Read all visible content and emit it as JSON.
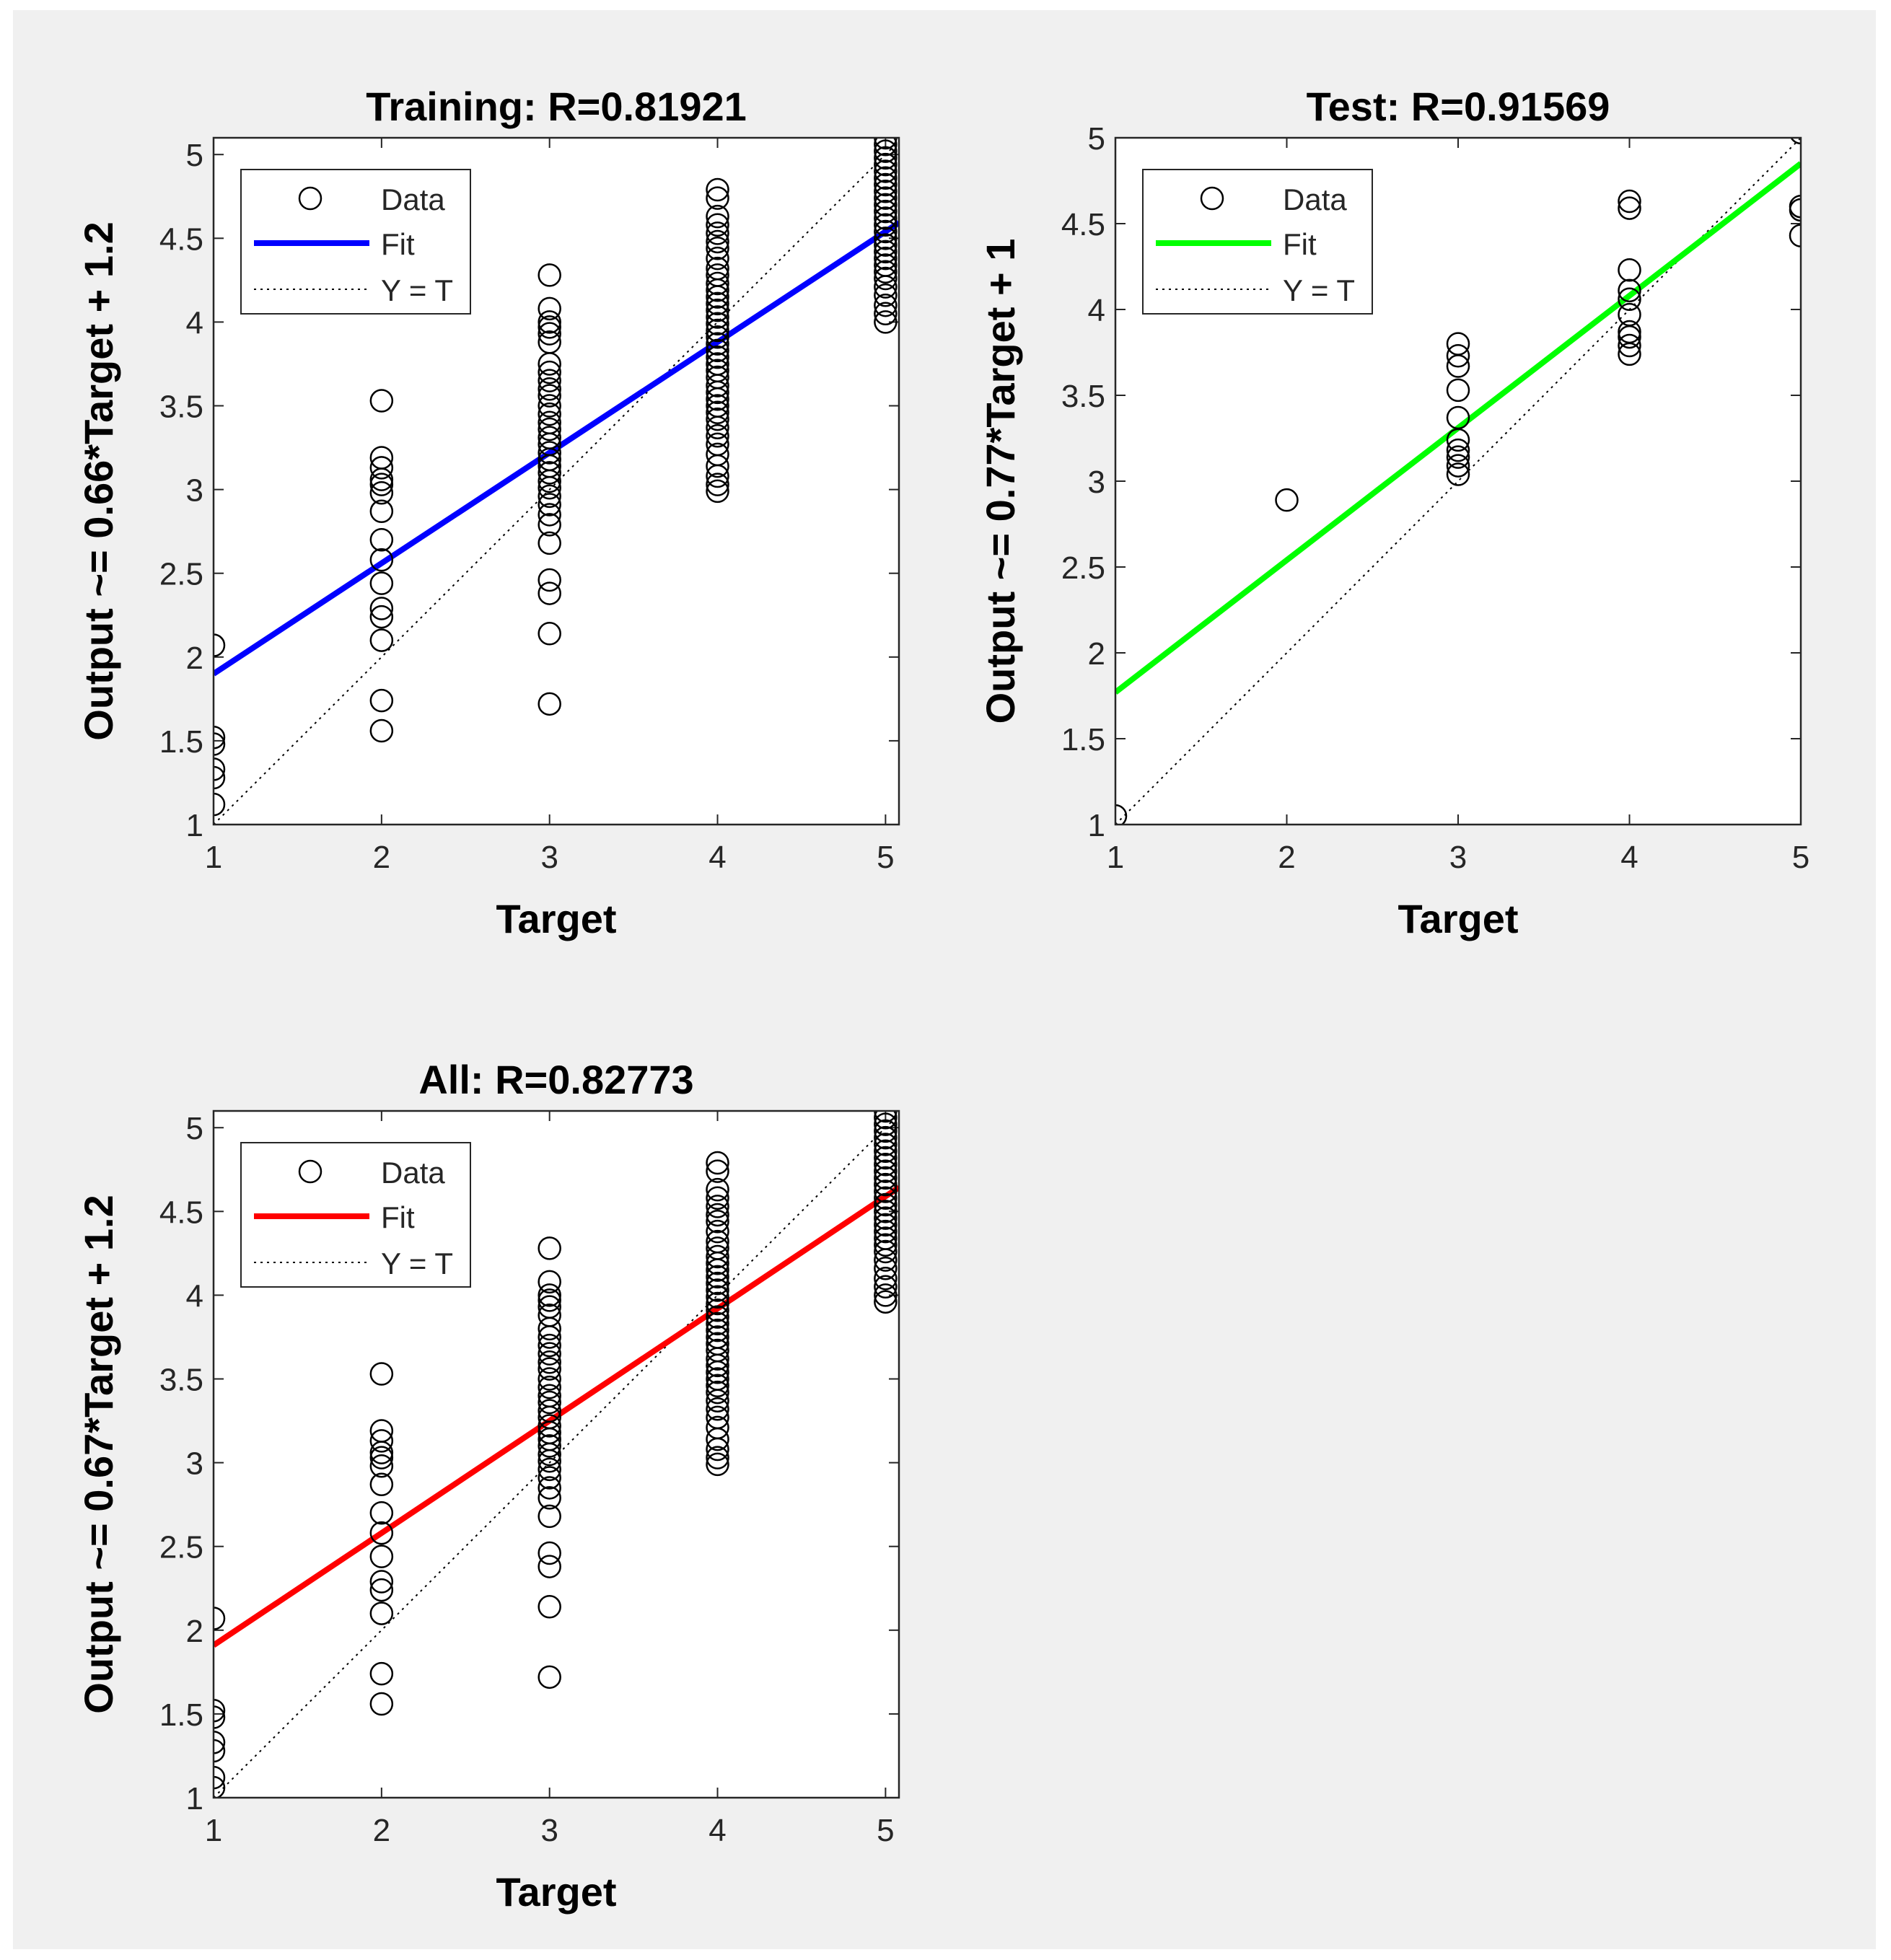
{
  "chart_data": [
    {
      "id": "training",
      "type": "scatter",
      "title": "Training: R=0.81921",
      "xlabel": "Target",
      "ylabel": "Output ~= 0.66*Target + 1.2",
      "xlim": [
        1,
        5.08
      ],
      "ylim": [
        1,
        5.1
      ],
      "xticks": [
        1,
        2,
        3,
        4,
        5
      ],
      "yticks": [
        1,
        1.5,
        2,
        2.5,
        3,
        3.5,
        4,
        4.5,
        5
      ],
      "fit": {
        "slope": 0.66,
        "intercept": 1.24,
        "color": "#0000ff"
      },
      "legend": {
        "position": "top-left",
        "entries": [
          "Data",
          "Fit",
          "Y = T"
        ]
      },
      "series": [
        {
          "x": 1,
          "y": [
            2.07,
            1.52,
            1.48,
            1.33,
            1.28,
            1.12
          ]
        },
        {
          "x": 2,
          "y": [
            3.53,
            3.19,
            3.13,
            3.06,
            3.03,
            2.98,
            2.87,
            2.7,
            2.58,
            2.44,
            2.29,
            2.24,
            2.1,
            1.74,
            1.56
          ]
        },
        {
          "x": 3,
          "y": [
            4.28,
            4.08,
            4.0,
            3.97,
            3.93,
            3.88,
            3.75,
            3.7,
            3.65,
            3.6,
            3.56,
            3.5,
            3.45,
            3.4,
            3.36,
            3.31,
            3.27,
            3.22,
            3.18,
            3.14,
            3.1,
            3.05,
            3.01,
            2.96,
            2.91,
            2.85,
            2.79,
            2.68,
            2.46,
            2.38,
            2.14,
            1.72
          ]
        },
        {
          "x": 4,
          "y": [
            4.79,
            4.74,
            4.63,
            4.58,
            4.53,
            4.48,
            4.44,
            4.38,
            4.32,
            4.28,
            4.23,
            4.19,
            4.15,
            4.11,
            4.07,
            4.03,
            3.99,
            3.95,
            3.91,
            3.87,
            3.83,
            3.79,
            3.75,
            3.71,
            3.67,
            3.62,
            3.58,
            3.54,
            3.5,
            3.46,
            3.42,
            3.37,
            3.32,
            3.27,
            3.21,
            3.14,
            3.08,
            3.03,
            2.99
          ]
        },
        {
          "x": 5,
          "y": [
            5.1,
            5.06,
            5.02,
            4.98,
            4.94,
            4.9,
            4.86,
            4.82,
            4.78,
            4.74,
            4.7,
            4.66,
            4.62,
            4.58,
            4.54,
            4.5,
            4.46,
            4.42,
            4.38,
            4.34,
            4.3,
            4.26,
            4.21,
            4.16,
            4.1,
            4.05,
            4.0
          ]
        }
      ]
    },
    {
      "id": "test",
      "type": "scatter",
      "title": "Test: R=0.91569",
      "xlabel": "Target",
      "ylabel": "Output ~= 0.77*Target + 1",
      "xlim": [
        1,
        5
      ],
      "ylim": [
        1,
        5
      ],
      "xticks": [
        1,
        2,
        3,
        4,
        5
      ],
      "yticks": [
        1,
        1.5,
        2,
        2.5,
        3,
        3.5,
        4,
        4.5,
        5
      ],
      "fit": {
        "slope": 0.77,
        "intercept": 1.0,
        "color": "#00ff00"
      },
      "legend": {
        "position": "top-left",
        "entries": [
          "Data",
          "Fit",
          "Y = T"
        ]
      },
      "series": [
        {
          "x": 1,
          "y": [
            1.05
          ]
        },
        {
          "x": 2,
          "y": [
            2.89
          ]
        },
        {
          "x": 3,
          "y": [
            3.8,
            3.73,
            3.67,
            3.53,
            3.37,
            3.24,
            3.18,
            3.14,
            3.09,
            3.04
          ]
        },
        {
          "x": 4,
          "y": [
            4.63,
            4.59,
            4.23,
            4.11,
            4.06,
            3.97,
            3.87,
            3.84,
            3.79,
            3.74
          ]
        },
        {
          "x": 5,
          "y": [
            5.03,
            4.6,
            4.58,
            4.43
          ]
        }
      ]
    },
    {
      "id": "all",
      "type": "scatter",
      "title": "All: R=0.82773",
      "xlabel": "Target",
      "ylabel": "Output ~= 0.67*Target + 1.2",
      "xlim": [
        1,
        5.08
      ],
      "ylim": [
        1,
        5.1
      ],
      "xticks": [
        1,
        2,
        3,
        4,
        5
      ],
      "yticks": [
        1,
        1.5,
        2,
        2.5,
        3,
        3.5,
        4,
        4.5,
        5
      ],
      "fit": {
        "slope": 0.67,
        "intercept": 1.24,
        "color": "#ff0000"
      },
      "legend": {
        "position": "top-left",
        "entries": [
          "Data",
          "Fit",
          "Y = T"
        ]
      },
      "series": [
        {
          "x": 1,
          "y": [
            2.07,
            1.52,
            1.48,
            1.33,
            1.28,
            1.12,
            1.06
          ]
        },
        {
          "x": 2,
          "y": [
            3.53,
            3.19,
            3.13,
            3.06,
            3.03,
            2.98,
            2.87,
            2.7,
            2.58,
            2.44,
            2.29,
            2.24,
            2.1,
            1.74,
            1.56
          ]
        },
        {
          "x": 3,
          "y": [
            4.28,
            4.08,
            4.0,
            3.97,
            3.93,
            3.88,
            3.8,
            3.75,
            3.7,
            3.65,
            3.6,
            3.56,
            3.5,
            3.45,
            3.4,
            3.36,
            3.31,
            3.27,
            3.22,
            3.18,
            3.14,
            3.1,
            3.05,
            3.01,
            2.96,
            2.91,
            2.85,
            2.79,
            2.68,
            2.46,
            2.38,
            2.14,
            1.72
          ]
        },
        {
          "x": 4,
          "y": [
            4.79,
            4.74,
            4.63,
            4.58,
            4.53,
            4.48,
            4.44,
            4.38,
            4.32,
            4.28,
            4.23,
            4.19,
            4.15,
            4.11,
            4.07,
            4.03,
            3.99,
            3.95,
            3.91,
            3.87,
            3.83,
            3.79,
            3.75,
            3.71,
            3.67,
            3.62,
            3.58,
            3.54,
            3.5,
            3.46,
            3.42,
            3.37,
            3.32,
            3.27,
            3.21,
            3.14,
            3.08,
            3.03,
            2.99
          ]
        },
        {
          "x": 5,
          "y": [
            5.1,
            5.06,
            5.02,
            4.98,
            4.94,
            4.9,
            4.86,
            4.82,
            4.78,
            4.74,
            4.7,
            4.66,
            4.62,
            4.58,
            4.54,
            4.5,
            4.46,
            4.42,
            4.38,
            4.34,
            4.3,
            4.26,
            4.21,
            4.16,
            4.1,
            4.05,
            4.0,
            3.96
          ]
        }
      ]
    }
  ]
}
